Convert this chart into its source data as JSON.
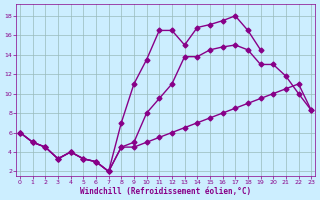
{
  "xlabel": "Windchill (Refroidissement éolien,°C)",
  "x_ticks": [
    0,
    1,
    2,
    3,
    4,
    5,
    6,
    7,
    8,
    9,
    10,
    11,
    12,
    13,
    14,
    15,
    16,
    17,
    18,
    19,
    20,
    21,
    22,
    23
  ],
  "y_ticks": [
    2,
    4,
    6,
    8,
    10,
    12,
    14,
    16,
    18
  ],
  "ylim": [
    1.5,
    19.2
  ],
  "xlim": [
    -0.3,
    23.3
  ],
  "line_top_x": [
    0,
    1,
    2,
    3,
    4,
    5,
    6,
    7,
    8,
    9,
    10,
    11,
    12,
    13,
    14,
    15,
    16,
    17,
    18,
    19,
    20,
    21,
    22,
    23
  ],
  "line_top_y": [
    6.0,
    5.0,
    4.5,
    3.3,
    4.0,
    3.3,
    3.0,
    2.0,
    7.0,
    11.0,
    13.5,
    16.5,
    16.5,
    15.0,
    16.8,
    17.1,
    17.5,
    18.0,
    16.5,
    14.5,
    null,
    null,
    null,
    null
  ],
  "line_mid_x": [
    0,
    1,
    2,
    3,
    4,
    5,
    6,
    7,
    8,
    9,
    10,
    11,
    12,
    13,
    14,
    15,
    16,
    17,
    18,
    19,
    20,
    21,
    22,
    23
  ],
  "line_mid_y": [
    6.0,
    5.0,
    4.5,
    3.3,
    4.0,
    3.3,
    3.0,
    2.0,
    4.5,
    5.0,
    8.0,
    9.5,
    11.0,
    13.8,
    13.8,
    14.5,
    14.8,
    15.0,
    14.5,
    13.0,
    13.0,
    11.8,
    10.0,
    8.3
  ],
  "line_bot_x": [
    0,
    1,
    2,
    3,
    4,
    5,
    6,
    7,
    8,
    9,
    10,
    11,
    12,
    13,
    14,
    15,
    16,
    17,
    18,
    19,
    20,
    21,
    22,
    23
  ],
  "line_bot_y": [
    6.0,
    5.0,
    4.5,
    3.3,
    4.0,
    3.3,
    3.0,
    2.0,
    4.5,
    4.5,
    5.0,
    5.5,
    6.0,
    6.5,
    7.0,
    7.5,
    8.0,
    8.5,
    9.0,
    9.5,
    10.0,
    10.5,
    11.0,
    8.3
  ],
  "line_color": "#880088",
  "bg_color": "#cceeff",
  "grid_color": "#99bbbb",
  "tick_color": "#880088",
  "xlabel_color": "#880088"
}
